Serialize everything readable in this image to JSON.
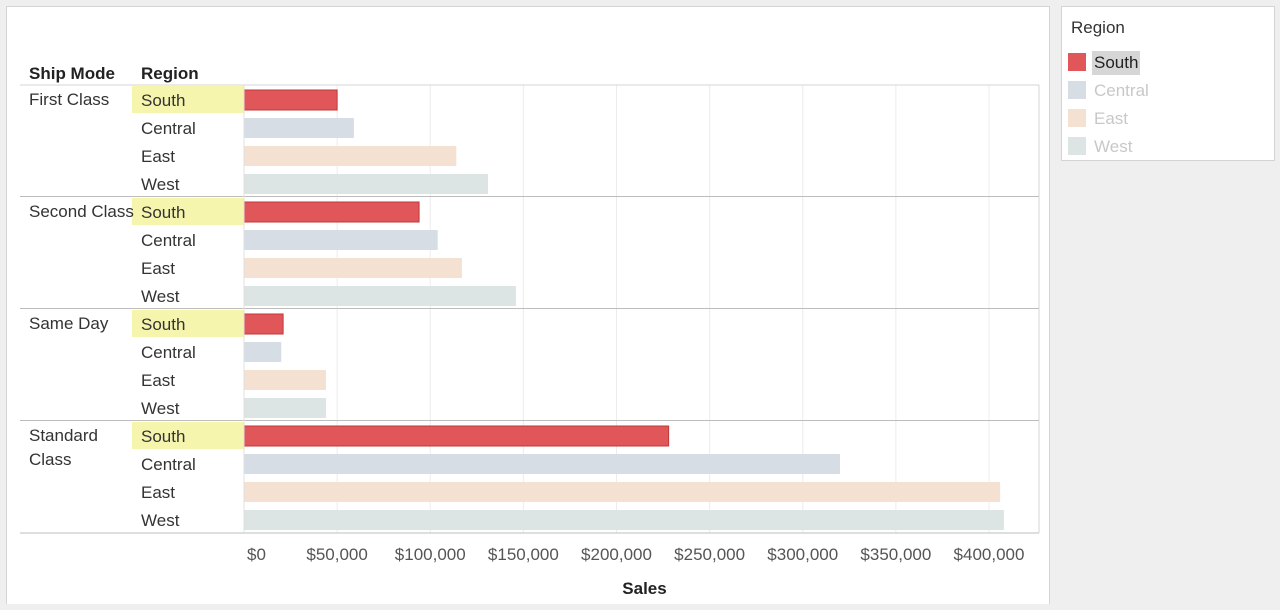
{
  "chart_data": {
    "type": "bar",
    "orientation": "horizontal",
    "row_headers": [
      "Ship Mode",
      "Region"
    ],
    "groups": [
      {
        "name": "First Class",
        "label_lines": [
          "First Class"
        ],
        "bars": [
          {
            "region": "South",
            "value": 50000
          },
          {
            "region": "Central",
            "value": 59000
          },
          {
            "region": "East",
            "value": 114000
          },
          {
            "region": "West",
            "value": 131000
          }
        ]
      },
      {
        "name": "Second Class",
        "label_lines": [
          "Second Class"
        ],
        "bars": [
          {
            "region": "South",
            "value": 94000
          },
          {
            "region": "Central",
            "value": 104000
          },
          {
            "region": "East",
            "value": 117000
          },
          {
            "region": "West",
            "value": 146000
          }
        ]
      },
      {
        "name": "Same Day",
        "label_lines": [
          "Same Day"
        ],
        "bars": [
          {
            "region": "South",
            "value": 21000
          },
          {
            "region": "Central",
            "value": 20000
          },
          {
            "region": "East",
            "value": 44000
          },
          {
            "region": "West",
            "value": 44000
          }
        ]
      },
      {
        "name": "Standard Class",
        "label_lines": [
          "Standard",
          "Class"
        ],
        "bars": [
          {
            "region": "South",
            "value": 228000
          },
          {
            "region": "Central",
            "value": 320000
          },
          {
            "region": "East",
            "value": 406000
          },
          {
            "region": "West",
            "value": 408000
          }
        ]
      }
    ],
    "xlabel": "Sales",
    "xlim": [
      0,
      428000
    ],
    "xticks": [
      0,
      50000,
      100000,
      150000,
      200000,
      250000,
      300000,
      350000,
      400000
    ],
    "xtick_labels": [
      "$0",
      "$50,000",
      "$100,000",
      "$150,000",
      "$200,000",
      "$250,000",
      "$300,000",
      "$350,000",
      "$400,000"
    ],
    "grid": true,
    "highlighted_region": "South",
    "highlight_color": "#f5f5ae",
    "colors": {
      "South": "#e15759",
      "Central": "#d6dde4",
      "East": "#f4e1d1",
      "West": "#dce5e4"
    }
  },
  "legend": {
    "title": "Region",
    "items": [
      {
        "label": "South",
        "color": "#e15759",
        "state": "selected"
      },
      {
        "label": "Central",
        "color": "#d6dde4",
        "state": "dimmed"
      },
      {
        "label": "East",
        "color": "#f4e1d1",
        "state": "dimmed"
      },
      {
        "label": "West",
        "color": "#dce5e4",
        "state": "dimmed"
      }
    ]
  }
}
